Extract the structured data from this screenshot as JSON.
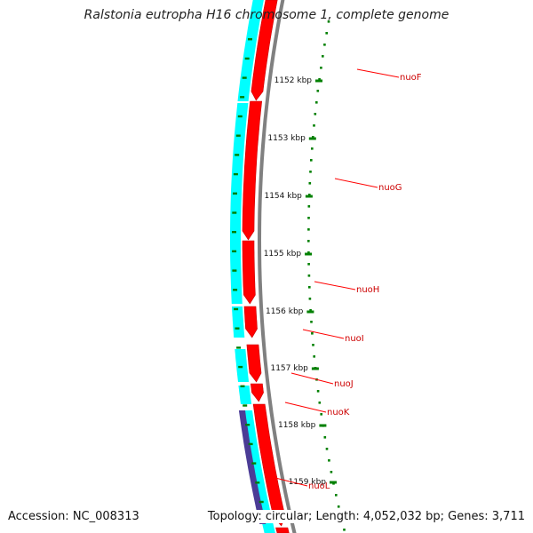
{
  "title": "Ralstonia eutropha H16 chromosome 1, complete genome",
  "accession": "Accession: NC_008313",
  "topology": "Topology: circular; Length: 4,052,032 bp; Genes: 3,711",
  "colors": {
    "backbone": "#808080",
    "forward_cds": "#ff0000",
    "forward_cds_dark": "#c80000",
    "reverse_feature": "#00ffff",
    "rna_feature": "#4b3c96",
    "tick": "#008000",
    "gene_label": "#cc0000",
    "connector": "#ff0000"
  },
  "scale_ticks": [
    {
      "label": "1152 kbp"
    },
    {
      "label": "1153 kbp"
    },
    {
      "label": "1154 kbp"
    },
    {
      "label": "1155 kbp"
    },
    {
      "label": "1156 kbp"
    },
    {
      "label": "1157 kbp"
    },
    {
      "label": "1158 kbp"
    },
    {
      "label": "1159 kbp"
    }
  ],
  "gene_labels": [
    "nuoF",
    "nuoG",
    "nuoH",
    "nuoI",
    "nuoJ",
    "nuoK",
    "nuoL"
  ]
}
